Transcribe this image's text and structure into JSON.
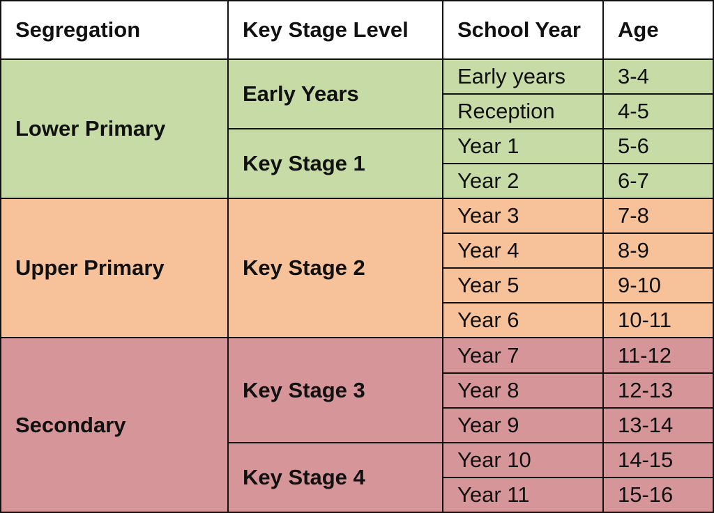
{
  "colors": {
    "lower_primary": "#c6dba5",
    "upper_primary": "#f7c29a",
    "secondary": "#d69598",
    "header": "#ffffff",
    "border": "#111111"
  },
  "headers": [
    "Segregation",
    "Key Stage Level",
    "School Year",
    "Age"
  ],
  "segregations": [
    "Lower Primary",
    "Upper Primary",
    "Secondary"
  ],
  "key_stages": [
    "Early Years",
    "Key Stage 1",
    "Key Stage 2",
    "Key Stage 3",
    "Key Stage 4"
  ],
  "rows": [
    {
      "year": "Early years",
      "age": "3-4"
    },
    {
      "year": "Reception",
      "age": "4-5"
    },
    {
      "year": "Year 1",
      "age": "5-6"
    },
    {
      "year": "Year 2",
      "age": "6-7"
    },
    {
      "year": "Year 3",
      "age": "7-8"
    },
    {
      "year": "Year 4",
      "age": "8-9"
    },
    {
      "year": "Year 5",
      "age": "9-10"
    },
    {
      "year": "Year 6",
      "age": "10-11"
    },
    {
      "year": "Year 7",
      "age": "11-12"
    },
    {
      "year": "Year 8",
      "age": "12-13"
    },
    {
      "year": "Year 9",
      "age": "13-14"
    },
    {
      "year": "Year 10",
      "age": "14-15"
    },
    {
      "year": "Year 11",
      "age": "15-16"
    }
  ]
}
